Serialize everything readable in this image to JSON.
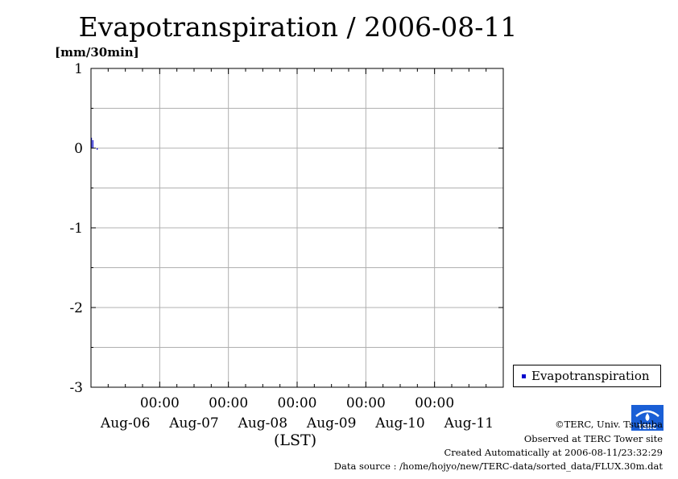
{
  "chart_data": {
    "type": "bar",
    "title": "Evapotranspiration / 2006-08-11",
    "ylabel": "[mm/30min]",
    "xlabel": "(LST)",
    "ylim": [
      -3,
      1
    ],
    "yticks": [
      1,
      0,
      -1,
      -2,
      -3
    ],
    "xlim_hours": [
      0,
      144
    ],
    "time_ticks": [
      "00:00",
      "00:00",
      "00:00",
      "00:00",
      "00:00"
    ],
    "date_labels": [
      "Aug-06",
      "Aug-07",
      "Aug-08",
      "Aug-09",
      "Aug-10",
      "Aug-11"
    ],
    "grid": true,
    "legend_position": "right",
    "series": [
      {
        "name": "Evapotranspiration",
        "color": "#0000cc",
        "interval_hours": 0.5,
        "start_hour": 0,
        "values": [
          0.13,
          0.1,
          0,
          0,
          -0.02,
          0,
          0,
          0,
          0,
          0,
          0,
          0,
          0,
          0,
          0,
          0,
          0,
          0,
          0,
          0,
          0,
          0,
          0,
          0,
          0,
          0,
          0,
          0,
          0,
          0,
          0,
          0,
          0,
          0,
          0,
          0,
          0,
          0,
          0,
          0,
          0,
          0,
          0,
          0,
          0,
          0,
          0,
          0,
          0,
          0,
          0,
          0,
          0,
          0,
          0,
          0,
          0,
          0,
          0,
          0,
          0,
          0,
          0,
          0,
          0,
          0,
          0,
          0,
          0,
          0,
          0,
          0,
          0,
          0,
          0,
          0,
          0,
          0,
          0,
          0,
          0,
          0,
          0,
          0,
          0,
          0,
          0,
          0,
          0,
          0,
          0,
          0,
          0,
          0,
          0,
          0,
          0,
          0,
          0,
          0,
          0,
          0,
          0,
          0,
          0,
          0,
          0,
          0,
          0,
          0,
          0,
          0,
          0,
          0,
          0,
          0,
          0,
          0,
          0,
          0,
          0,
          0,
          0,
          0,
          0,
          0,
          0,
          0,
          0,
          0,
          0,
          0,
          0,
          0,
          0,
          0,
          0,
          0,
          0,
          0,
          0,
          0,
          0,
          0,
          0,
          0,
          0,
          0,
          0,
          0,
          0,
          0,
          0,
          0,
          0,
          0,
          0,
          0,
          0,
          0,
          0,
          0,
          0,
          0,
          0,
          0,
          0,
          0,
          0,
          0,
          0,
          0,
          0,
          0,
          0,
          0,
          0,
          0,
          0,
          0,
          0,
          0,
          0,
          0,
          0,
          0,
          0,
          0,
          0,
          0,
          0,
          0,
          0,
          0,
          0,
          0,
          0,
          0,
          0,
          0,
          0,
          0,
          0,
          0,
          0,
          0,
          0,
          0,
          0,
          0,
          0,
          0,
          0,
          0,
          0,
          0,
          0,
          0,
          0,
          0,
          0,
          0,
          0,
          0,
          0,
          0,
          0,
          0,
          0,
          0,
          0,
          0,
          0,
          0,
          0,
          0,
          0,
          0,
          0,
          0,
          0,
          0,
          0,
          0,
          0,
          0,
          0,
          0,
          0,
          0,
          0,
          0,
          0,
          0,
          0,
          0,
          0,
          0,
          0,
          0,
          0,
          0,
          0,
          0,
          0,
          0,
          0,
          0,
          0,
          0,
          0,
          0,
          0,
          0,
          0,
          0,
          0,
          0,
          0,
          0,
          0,
          0,
          0,
          0,
          0,
          0,
          0,
          0
        ]
      }
    ],
    "data_note_unused": null
  },
  "legend": {
    "label": "Evapotranspiration"
  },
  "credits": {
    "line1": "©TERC, Univ. Tsukuba",
    "line2": "Observed at TERC Tower site",
    "line3": "Created Automatically at 2006-08-11/23:32:29",
    "line4": "Data source : /home/hojyo/new/TERC-data/sorted_data/FLUX.30m.dat"
  },
  "logo": {
    "text": "TERC",
    "color": "#1a5fd6"
  }
}
